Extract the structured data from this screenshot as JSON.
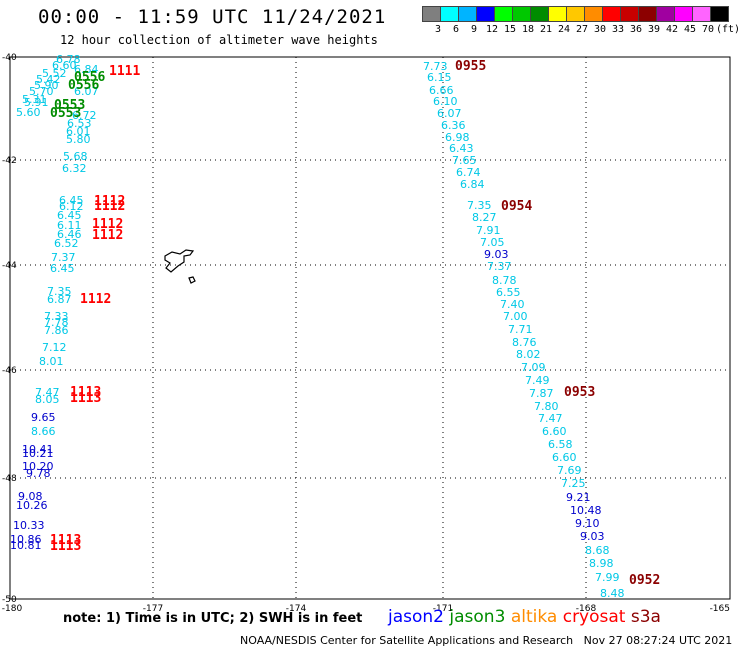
{
  "header": {
    "title": "00:00 - 11:59 UTC 11/24/2021",
    "subtitle": "12 hour collection of altimeter wave heights"
  },
  "legend_scale": {
    "colors": [
      "#7f7f7f",
      "#00ffff",
      "#00b4ff",
      "#0000ff",
      "#00ff00",
      "#00c800",
      "#008c00",
      "#ffff00",
      "#ffc800",
      "#ff8c00",
      "#ff0000",
      "#c80000",
      "#8c0000",
      "#a000a0",
      "#ff00ff",
      "#ff64ff",
      "#000000"
    ],
    "labels": [
      "3",
      "6",
      "9",
      "12",
      "15",
      "18",
      "21",
      "24",
      "27",
      "30",
      "33",
      "36",
      "39",
      "42",
      "45",
      "70",
      "(ft)"
    ]
  },
  "axes": {
    "x_ticks": [
      "-180",
      "-177",
      "-174",
      "-171",
      "-168",
      "-165"
    ],
    "y_ticks": [
      "-40",
      "-42",
      "-44",
      "-46",
      "-48",
      "-50"
    ]
  },
  "colors": {
    "cryosat": "#ff0000",
    "s3a": "#8b0000",
    "jason2": "#0000ff",
    "jason3": "#008c00",
    "altika": "#ff8c00",
    "cyan": "#00c8e6",
    "teal": "#00a8a8",
    "blue": "#0000cc",
    "light_blue": "#00aaff"
  },
  "west_track": {
    "upper_cyan": [
      {
        "t": "6.78",
        "c": "cyan"
      },
      {
        "t": "6.60",
        "c": "cyan"
      },
      {
        "t": "6.84",
        "c": "cyan"
      },
      {
        "t": "5.52",
        "c": "cyan"
      },
      {
        "t": "5.42",
        "c": "cyan"
      },
      {
        "t": "5.90",
        "c": "cyan"
      },
      {
        "t": "6.07",
        "c": "cyan"
      },
      {
        "t": "5.70",
        "c": "cyan"
      },
      {
        "t": "5.31",
        "c": "cyan"
      },
      {
        "t": "5.91",
        "c": "cyan"
      },
      {
        "t": "5.60",
        "c": "cyan"
      },
      {
        "t": "6.72",
        "c": "cyan"
      },
      {
        "t": "6.53",
        "c": "cyan"
      },
      {
        "t": "6.01",
        "c": "cyan"
      },
      {
        "t": "5.80",
        "c": "cyan"
      },
      {
        "t": "5.68",
        "c": "cyan"
      },
      {
        "t": "6.32",
        "c": "cyan"
      }
    ],
    "times_upper": [
      "1111",
      "0556",
      "0556",
      "0553",
      "0553"
    ],
    "middle": [
      {
        "t": "6.45",
        "c": "cyan"
      },
      {
        "t": "6.12",
        "c": "cyan"
      },
      {
        "t": "6.45",
        "c": "cyan"
      },
      {
        "t": "6.11",
        "c": "cyan"
      },
      {
        "t": "6.46",
        "c": "cyan"
      },
      {
        "t": "6.52",
        "c": "cyan"
      },
      {
        "t": "7.37",
        "c": "cyan"
      },
      {
        "t": "6.45",
        "c": "cyan"
      },
      {
        "t": "7.35",
        "c": "cyan"
      },
      {
        "t": "6.87",
        "c": "cyan"
      },
      {
        "t": "7.33",
        "c": "cyan"
      },
      {
        "t": "7.78",
        "c": "cyan"
      },
      {
        "t": "7.86",
        "c": "cyan"
      },
      {
        "t": "7.12",
        "c": "cyan"
      },
      {
        "t": "8.01",
        "c": "cyan"
      }
    ],
    "times_middle": [
      "1112",
      "1112",
      "1112",
      "1112",
      "1112"
    ],
    "lower": [
      {
        "t": "7.47",
        "c": "cyan"
      },
      {
        "t": "8.05",
        "c": "cyan"
      },
      {
        "t": "9.65",
        "c": "blue"
      },
      {
        "t": "8.66",
        "c": "cyan"
      },
      {
        "t": "10.41",
        "c": "blue"
      },
      {
        "t": "10.21",
        "c": "blue"
      },
      {
        "t": "10.20",
        "c": "blue"
      },
      {
        "t": "9.78",
        "c": "blue"
      },
      {
        "t": "9.08",
        "c": "blue"
      },
      {
        "t": "10.26",
        "c": "blue"
      },
      {
        "t": "10.33",
        "c": "blue"
      },
      {
        "t": "10.86",
        "c": "blue"
      },
      {
        "t": "10.81",
        "c": "blue"
      }
    ],
    "times_lower": [
      "1113",
      "1113",
      "1113",
      "1113"
    ]
  },
  "east_track": {
    "values": [
      {
        "t": "7.73",
        "c": "cyan"
      },
      {
        "t": "6.15",
        "c": "cyan"
      },
      {
        "t": "6.66",
        "c": "cyan"
      },
      {
        "t": "6.10",
        "c": "cyan"
      },
      {
        "t": "6.07",
        "c": "cyan"
      },
      {
        "t": "6.36",
        "c": "cyan"
      },
      {
        "t": "6.98",
        "c": "cyan"
      },
      {
        "t": "6.43",
        "c": "cyan"
      },
      {
        "t": "7.65",
        "c": "cyan"
      },
      {
        "t": "6.74",
        "c": "cyan"
      },
      {
        "t": "6.84",
        "c": "cyan"
      },
      {
        "t": "7.35",
        "c": "cyan"
      },
      {
        "t": "8.27",
        "c": "cyan"
      },
      {
        "t": "7.91",
        "c": "cyan"
      },
      {
        "t": "7.05",
        "c": "cyan"
      },
      {
        "t": "9.03",
        "c": "blue"
      },
      {
        "t": "7.37",
        "c": "cyan"
      },
      {
        "t": "8.78",
        "c": "cyan"
      },
      {
        "t": "6.55",
        "c": "cyan"
      },
      {
        "t": "7.40",
        "c": "cyan"
      },
      {
        "t": "7.00",
        "c": "cyan"
      },
      {
        "t": "7.71",
        "c": "cyan"
      },
      {
        "t": "8.76",
        "c": "cyan"
      },
      {
        "t": "8.02",
        "c": "cyan"
      },
      {
        "t": "7.09",
        "c": "cyan"
      },
      {
        "t": "7.49",
        "c": "cyan"
      },
      {
        "t": "7.87",
        "c": "cyan"
      },
      {
        "t": "7.80",
        "c": "cyan"
      },
      {
        "t": "7.47",
        "c": "cyan"
      },
      {
        "t": "6.60",
        "c": "cyan"
      },
      {
        "t": "6.58",
        "c": "cyan"
      },
      {
        "t": "6.60",
        "c": "cyan"
      },
      {
        "t": "7.69",
        "c": "cyan"
      },
      {
        "t": "7.25",
        "c": "cyan"
      },
      {
        "t": "9.21",
        "c": "blue"
      },
      {
        "t": "10.48",
        "c": "blue"
      },
      {
        "t": "9.10",
        "c": "blue"
      },
      {
        "t": "9.03",
        "c": "blue"
      },
      {
        "t": "8.68",
        "c": "cyan"
      },
      {
        "t": "8.98",
        "c": "cyan"
      },
      {
        "t": "7.99",
        "c": "cyan"
      },
      {
        "t": "8.48",
        "c": "cyan"
      }
    ],
    "times": [
      "0955",
      "0954",
      "0953",
      "0952"
    ]
  },
  "footer": {
    "note": "note: 1) Time is in UTC; 2) SWH is in feet",
    "sat_jason2": "jason2",
    "sat_jason3": "jason3",
    "sat_altika": "altika",
    "sat_cryosat": "cryosat",
    "sat_s3a": "s3a",
    "credit": "NOAA/NESDIS Center for Satellite Applications and Research   Nov 27 08:27:24 UTC 2021"
  }
}
